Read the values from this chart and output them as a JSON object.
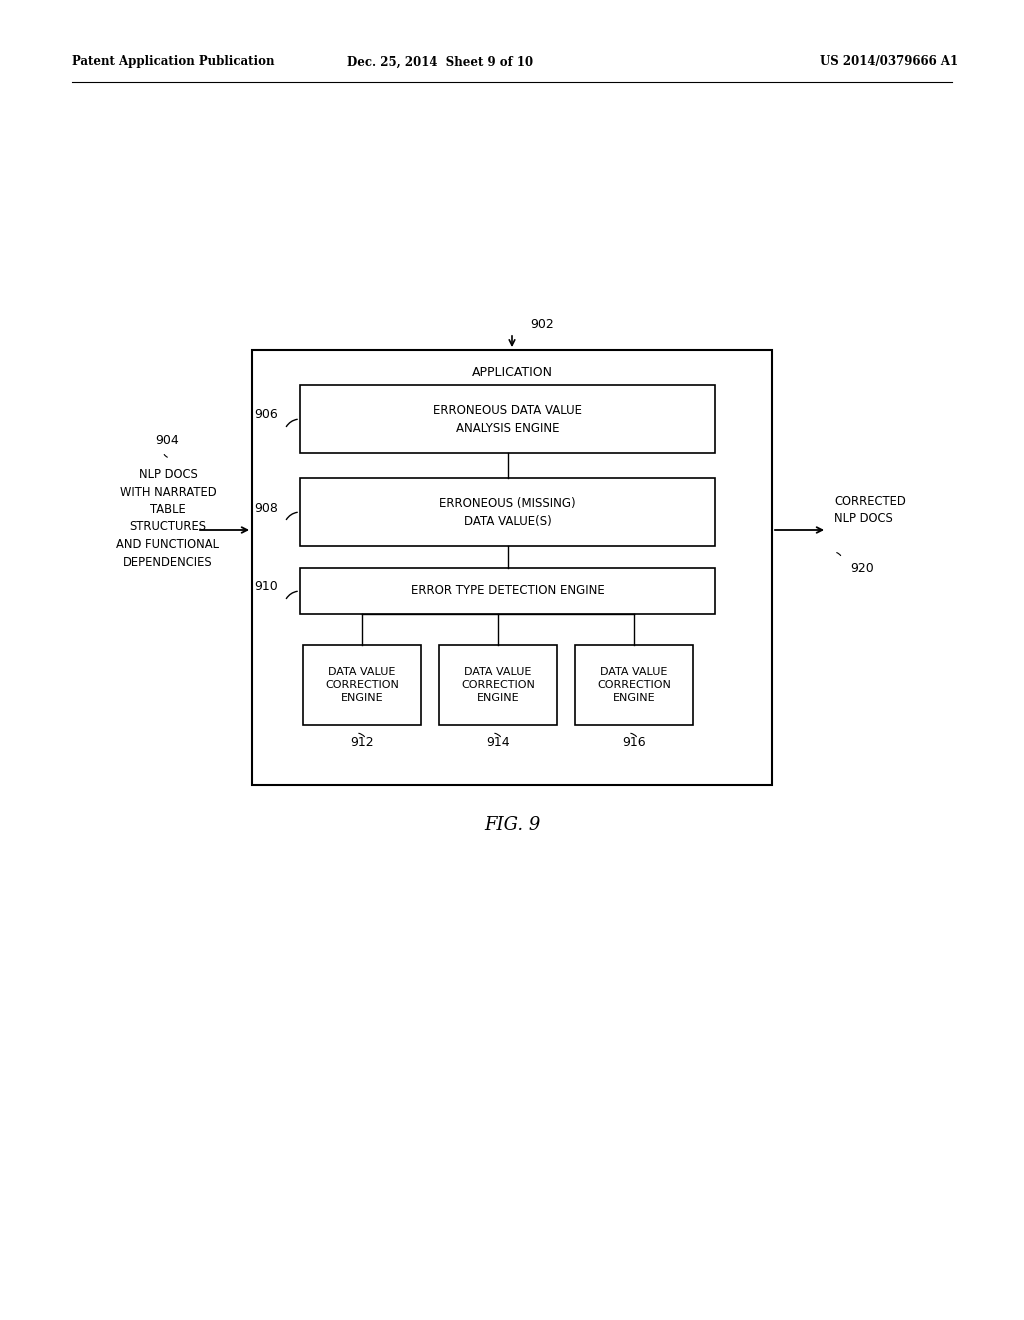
{
  "bg_color": "#ffffff",
  "header_left": "Patent Application Publication",
  "header_mid": "Dec. 25, 2014  Sheet 9 of 10",
  "header_right": "US 2014/0379666 A1",
  "fig_label": "FIG. 9",
  "outer_box_label": "APPLICATION",
  "label_902": "902",
  "label_904": "904",
  "label_906": "906",
  "label_908": "908",
  "label_910": "910",
  "label_912": "912",
  "label_914": "914",
  "label_916": "916",
  "label_920": "920",
  "box906_text": "ERRONEOUS DATA VALUE\nANALYSIS ENGINE",
  "box908_text": "ERRONEOUS (MISSING)\nDATA VALUE(S)",
  "box910_text": "ERROR TYPE DETECTION ENGINE",
  "box912_text": "DATA VALUE\nCORRECTION\nENGINE",
  "box914_text": "DATA VALUE\nCORRECTION\nENGINE",
  "box916_text": "DATA VALUE\nCORRECTION\nENGINE",
  "left_input_text": "NLP DOCS\nWITH NARRATED\nTABLE\nSTRUCTURES\nAND FUNCTIONAL\nDEPENDENCIES",
  "right_output_text": "CORRECTED\nNLP DOCS",
  "font_color": "#000000",
  "box_edge_color": "#000000",
  "line_color": "#000000"
}
